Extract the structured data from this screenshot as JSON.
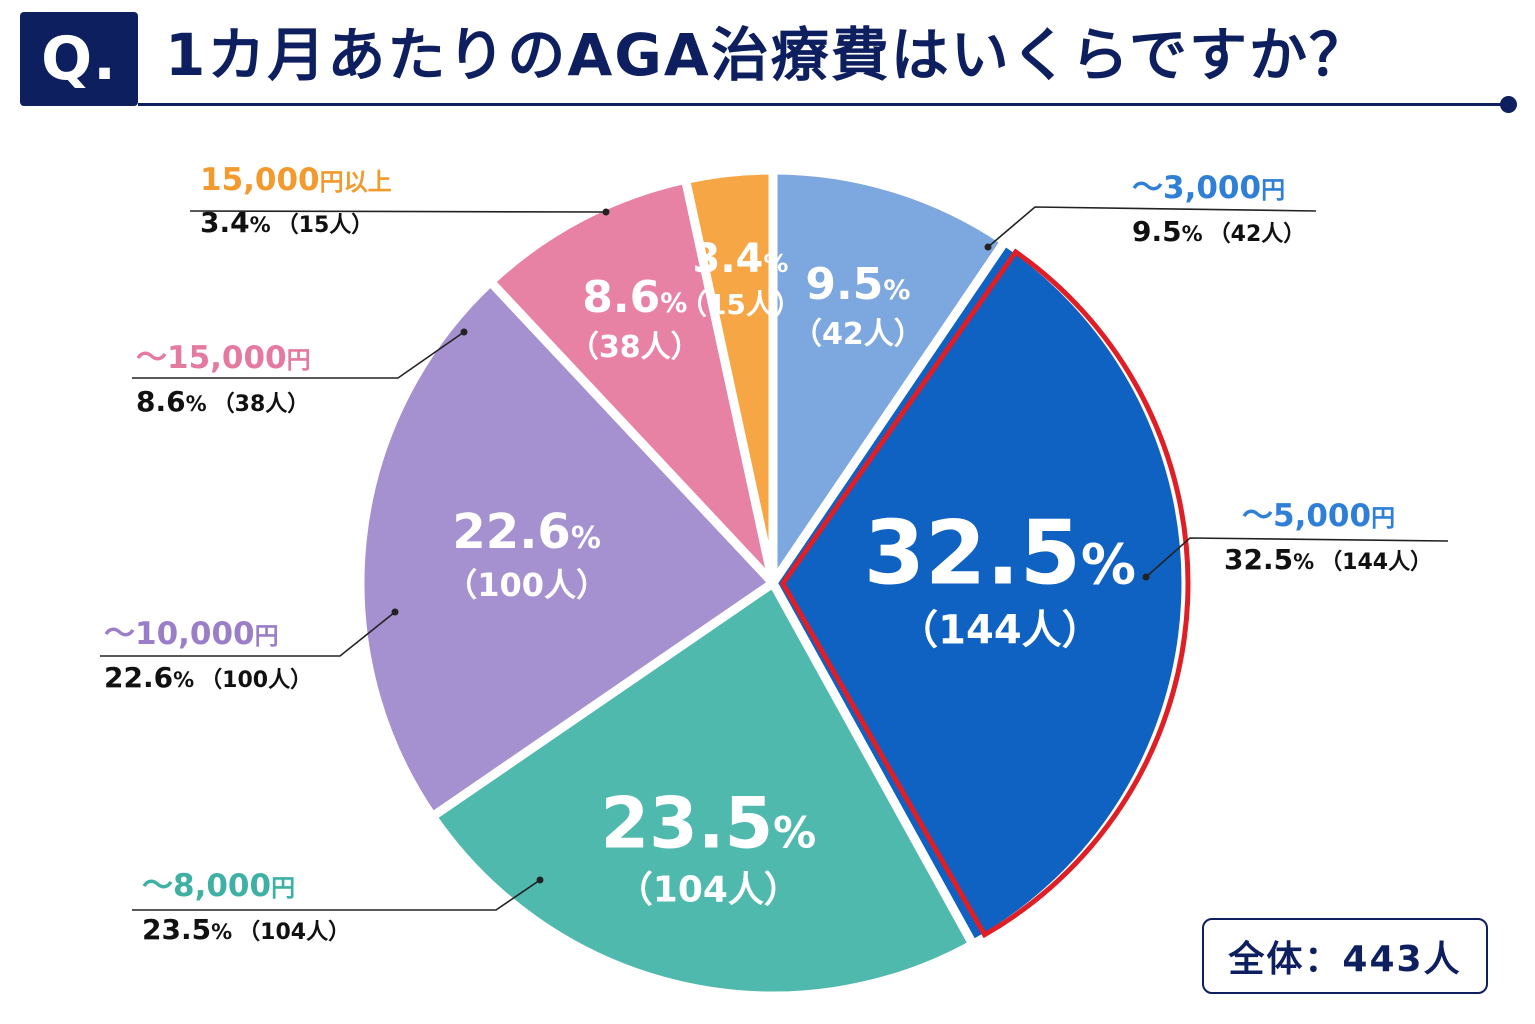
{
  "header": {
    "q_label": "Q.",
    "title": "1カ月あたりのAGA治療費はいくらですか？"
  },
  "total_label": "全体：443人",
  "chart_data": {
    "type": "pie",
    "total": 443,
    "start_angle_deg": 0,
    "direction": "clockwise",
    "highlight": "〜5,000円",
    "slices": [
      {
        "label": "〜3,000円",
        "percent": 9.5,
        "count": 42,
        "pct_text": "9.5",
        "cnt_text": "（42人）",
        "color": "#7da7df"
      },
      {
        "label": "〜5,000円",
        "percent": 32.5,
        "count": 144,
        "pct_text": "32.5",
        "cnt_text": "（144人）",
        "color": "#0f62c1"
      },
      {
        "label": "〜8,000円",
        "percent": 23.5,
        "count": 104,
        "pct_text": "23.5",
        "cnt_text": "（104人）",
        "color": "#4fb9ad"
      },
      {
        "label": "〜10,000円",
        "percent": 22.6,
        "count": 100,
        "pct_text": "22.6",
        "cnt_text": "（100人）",
        "color": "#a590d0"
      },
      {
        "label": "〜15,000円",
        "percent": 8.6,
        "count": 38,
        "pct_text": "8.6",
        "cnt_text": "（38人）",
        "color": "#e882a5"
      },
      {
        "label": "15,000円以上",
        "percent": 3.4,
        "count": 15,
        "pct_text": "3.4",
        "cnt_text": "（15人）",
        "color": "#f7a645"
      }
    ],
    "callouts": [
      {
        "cat_prefix": "〜3,000",
        "cat_suffix": "円",
        "val": "9.5",
        "cnt": "（42人）",
        "color": "#2f7fd6"
      },
      {
        "cat_prefix": "〜5,000",
        "cat_suffix": "円",
        "val": "32.5",
        "cnt": "（144人）",
        "color": "#2f7fd6"
      },
      {
        "cat_prefix": "〜8,000",
        "cat_suffix": "円",
        "val": "23.5",
        "cnt": "（104人）",
        "color": "#3fb0a4"
      },
      {
        "cat_prefix": "〜10,000",
        "cat_suffix": "円",
        "val": "22.6",
        "cnt": "（100人）",
        "color": "#9a7fc8"
      },
      {
        "cat_prefix": "〜15,000",
        "cat_suffix": "円",
        "val": "8.6",
        "cnt": "（38人）",
        "color": "#e47a9e"
      },
      {
        "cat_prefix": "15,000",
        "cat_suffix": "円以上",
        "val": "3.4",
        "cnt": "（15人）",
        "color": "#f29a2e"
      }
    ],
    "percent_sign": "%"
  }
}
